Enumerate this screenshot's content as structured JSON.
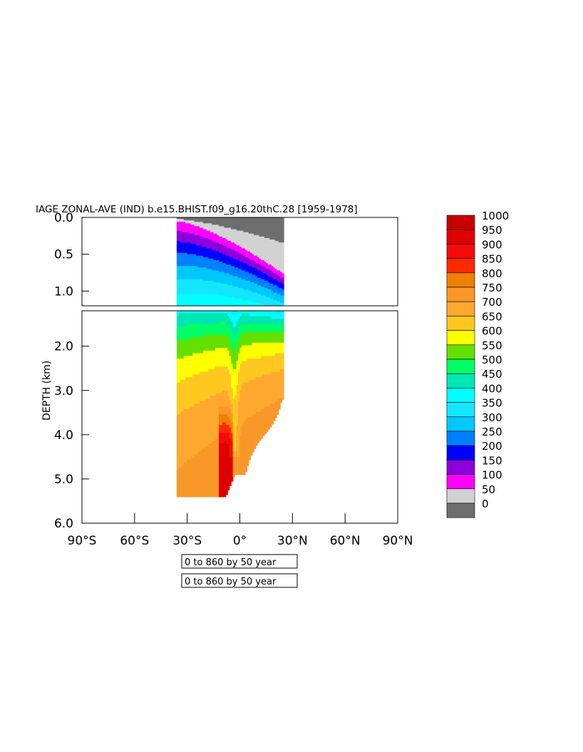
{
  "chart_data": {
    "type": "heatmap",
    "title": "IAGE ZONAL-AVE (IND) b.e15.BHIST.f09_g16.20thC.28 [1959-1978]",
    "ylabel": "DEPTH (km)",
    "xlabel": "",
    "x_ticks": [
      "90°S",
      "60°S",
      "30°S",
      "0°",
      "30°N",
      "60°N",
      "90°N"
    ],
    "x_tick_values": [
      -90,
      -60,
      -30,
      0,
      30,
      60,
      90
    ],
    "xlim": [
      -90,
      90
    ],
    "upper_panel": {
      "ylim": [
        0.0,
        1.2
      ],
      "y_ticks": [
        "0.0",
        "0.5",
        "1.0"
      ],
      "y_tick_values": [
        0.0,
        0.5,
        1.0
      ]
    },
    "lower_panel": {
      "ylim": [
        1.2,
        6.0
      ],
      "y_ticks": [
        "2.0",
        "3.0",
        "4.0",
        "5.0",
        "6.0"
      ],
      "y_tick_values": [
        2.0,
        3.0,
        4.0,
        5.0,
        6.0
      ]
    },
    "contour_note_1": "0 to 860 by 50 year",
    "contour_note_2": "0 to 860 by 50 year",
    "legend": {
      "placement": "right",
      "labels": [
        "1000",
        "950",
        "900",
        "850",
        "800",
        "750",
        "700",
        "650",
        "600",
        "550",
        "500",
        "450",
        "400",
        "350",
        "300",
        "250",
        "200",
        "150",
        "100",
        "50",
        "0"
      ],
      "colors": [
        "#c80000",
        "#e00000",
        "#f50a0a",
        "#ff2a00",
        "#f08000",
        "#f89828",
        "#ffa830",
        "#ffc820",
        "#ffff00",
        "#64e000",
        "#00ff64",
        "#00e6b4",
        "#00ffff",
        "#14e6ff",
        "#00c8ff",
        "#0080ff",
        "#0000ff",
        "#8c00dc",
        "#ff00ff",
        "#d2d2d2",
        "#6e6e6e"
      ]
    },
    "depth_profile_bottom_km": [
      {
        "lat": -36,
        "depth": 5.4
      },
      {
        "lat": -8,
        "depth": 5.4
      },
      {
        "lat": -3,
        "depth": 4.9
      },
      {
        "lat": 3,
        "depth": 4.9
      },
      {
        "lat": 6,
        "depth": 4.5
      },
      {
        "lat": 10,
        "depth": 4.2
      },
      {
        "lat": 14,
        "depth": 4.0
      },
      {
        "lat": 18,
        "depth": 3.8
      },
      {
        "lat": 22,
        "depth": 3.5
      },
      {
        "lat": 24,
        "depth": 3.2
      }
    ],
    "grid": false
  }
}
